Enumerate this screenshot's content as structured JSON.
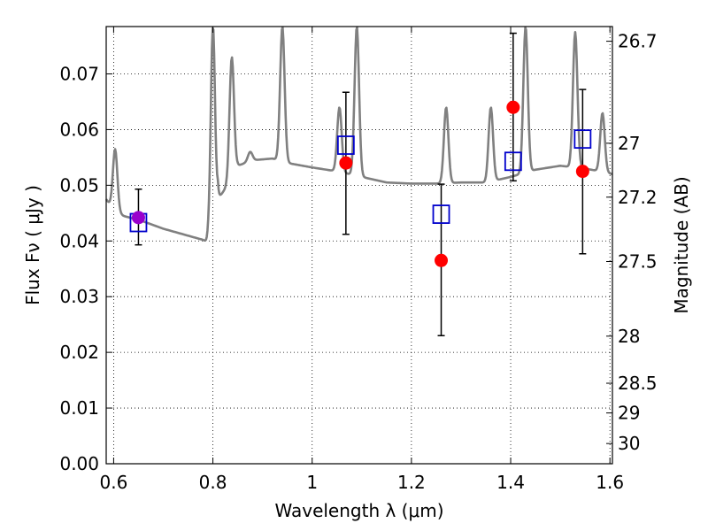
{
  "chart_data": {
    "type": "scatter",
    "xlabel": "Wavelength  λ (μm)",
    "ylabel": "Flux  Fν  ( μJy )",
    "y2label": "Magnitude (AB)",
    "xlim": [
      0.585,
      1.605
    ],
    "ylim": [
      0.0,
      0.0785
    ],
    "grid": true,
    "xticks": [
      0.6,
      0.8,
      1.0,
      1.2,
      1.4,
      1.6
    ],
    "xtick_labels": [
      "0.6",
      "0.8",
      "1",
      "1.2",
      "1.4",
      "1.6"
    ],
    "yticks": [
      0.0,
      0.01,
      0.02,
      0.03,
      0.04,
      0.05,
      0.06,
      0.07
    ],
    "ytick_labels": [
      "0.00",
      "0.01",
      "0.02",
      "0.03",
      "0.04",
      "0.05",
      "0.06",
      "0.07"
    ],
    "y2ticks": [
      26.7,
      27,
      27.2,
      27.5,
      28,
      28.5,
      29,
      30
    ],
    "y2tick_labels": [
      "26.7",
      "27",
      "27.2",
      "27.5",
      "28",
      "28.5",
      "29",
      "30"
    ],
    "model_spectrum": {
      "color": "#808080",
      "x": [
        0.585,
        0.6,
        0.62,
        0.66,
        0.7,
        0.74,
        0.76,
        0.78,
        0.79,
        0.795,
        0.8,
        0.805,
        0.81,
        0.83,
        0.85,
        0.88,
        0.92,
        0.95,
        1.0,
        1.05,
        1.1,
        1.15,
        1.2,
        1.25,
        1.3,
        1.35,
        1.4,
        1.45,
        1.5,
        1.55,
        1.58,
        1.605
      ],
      "y": [
        0.0475,
        0.0455,
        0.0445,
        0.0435,
        0.0422,
        0.0412,
        0.0407,
        0.0402,
        0.0397,
        0.0372,
        0.0375,
        0.0395,
        0.0475,
        0.05,
        0.0535,
        0.0545,
        0.0548,
        0.054,
        0.0532,
        0.0525,
        0.0515,
        0.0505,
        0.0503,
        0.0503,
        0.0505,
        0.0505,
        0.0515,
        0.0528,
        0.0535,
        0.053,
        0.0525,
        0.052
      ]
    },
    "emission_lines": [
      {
        "x": 0.603,
        "peak": 0.0565
      },
      {
        "x": 0.8,
        "peak": 0.0785
      },
      {
        "x": 0.838,
        "peak": 0.073
      },
      {
        "x": 0.875,
        "peak": 0.056
      },
      {
        "x": 0.94,
        "peak": 0.0785
      },
      {
        "x": 1.055,
        "peak": 0.064
      },
      {
        "x": 1.09,
        "peak": 0.0785
      },
      {
        "x": 1.27,
        "peak": 0.064
      },
      {
        "x": 1.36,
        "peak": 0.064
      },
      {
        "x": 1.43,
        "peak": 0.0785
      },
      {
        "x": 1.53,
        "peak": 0.0775
      },
      {
        "x": 1.585,
        "peak": 0.063
      }
    ],
    "series": [
      {
        "marker": "circle",
        "color": "#ff0000",
        "points": [
          {
            "x": 1.068,
            "y": 0.054,
            "yerr_low": 0.0412,
            "yerr_high": 0.0667
          },
          {
            "x": 1.26,
            "y": 0.0365,
            "yerr_low": 0.023,
            "yerr_high": 0.0502
          },
          {
            "x": 1.405,
            "y": 0.064,
            "yerr_low": 0.0508,
            "yerr_high": 0.0773
          },
          {
            "x": 1.545,
            "y": 0.0525,
            "yerr_low": 0.0377,
            "yerr_high": 0.0672
          }
        ]
      },
      {
        "marker": "circle",
        "color": "#9900cc",
        "points": [
          {
            "x": 0.65,
            "y": 0.0442,
            "yerr_low": 0.0393,
            "yerr_high": 0.0493
          }
        ]
      },
      {
        "marker": "open-square",
        "color": "#0000cc",
        "points": [
          {
            "x": 0.65,
            "y": 0.0433
          },
          {
            "x": 1.068,
            "y": 0.0572
          },
          {
            "x": 1.26,
            "y": 0.0448
          },
          {
            "x": 1.405,
            "y": 0.0543
          },
          {
            "x": 1.545,
            "y": 0.0583
          }
        ]
      }
    ]
  }
}
